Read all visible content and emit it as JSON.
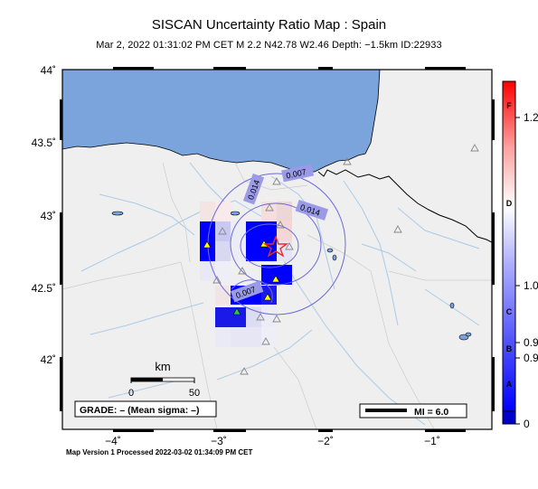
{
  "map": {
    "title": "SISCAN Uncertainty Ratio Map : Spain",
    "subtitle": "Mar  2, 2022 01:31:02 PM CET   M 2.2   N42.78 W2.46   Depth: −1.5km   ID:22933",
    "footer": "Map Version 1 Processed 2022-03-02 01:34:09 PM CET",
    "colors": {
      "sea": "#7ba3dc",
      "land": "#efefef",
      "rivers": "#aacbe6",
      "contour": "#6b6bdc",
      "epicenter": "#e03030",
      "station": "#ffff00",
      "station_green": "#22cc44"
    },
    "lat_axis": {
      "labels": [
        "44˚",
        "43.5˚",
        "43˚",
        "42.5˚",
        "42˚"
      ],
      "values": [
        44,
        43.5,
        43,
        42.5,
        42
      ]
    },
    "lon_axis": {
      "labels": [
        "−4˚",
        "−3˚",
        "−2˚",
        "−1˚"
      ],
      "values": [
        -4,
        -3,
        -2,
        -1
      ]
    },
    "contour_labels": [
      "0.007",
      "0.014",
      "0.014",
      "0.007"
    ],
    "scalebar": {
      "unit": "km",
      "ticks": [
        "0",
        "50"
      ]
    },
    "grade": "GRADE: – (Mean sigma: –)",
    "mi_legend": "MI = 6.0",
    "colorbar": {
      "letters": [
        "F",
        "D",
        "C",
        "B",
        "A"
      ],
      "values": [
        "1.2",
        "1.0",
        "0.9",
        "0.9",
        "0"
      ],
      "bottom_value": "0"
    }
  }
}
